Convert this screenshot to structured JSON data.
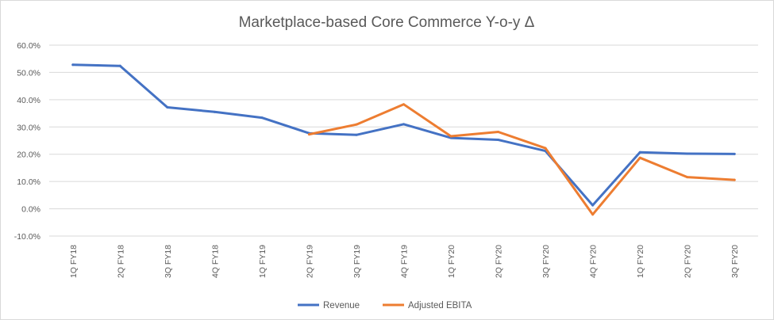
{
  "chart_data": {
    "type": "line",
    "title": "Marketplace-based Core Commerce Y-o-y Δ",
    "xlabel": "",
    "ylabel": "",
    "ylim": [
      -10,
      60
    ],
    "yticks": [
      60,
      50,
      40,
      30,
      20,
      10,
      0,
      -10
    ],
    "ytick_labels": [
      "60.0%",
      "50.0%",
      "40.0%",
      "30.0%",
      "20.0%",
      "10.0%",
      "0.0%",
      "-10.0%"
    ],
    "categories": [
      "1Q FY18",
      "2Q FY18",
      "3Q FY18",
      "4Q FY18",
      "1Q FY19",
      "2Q FY19",
      "3Q FY19",
      "4Q FY19",
      "1Q FY20",
      "2Q FY20",
      "3Q FY20",
      "4Q FY20",
      "1Q FY20",
      "2Q FY20",
      "3Q FY20"
    ],
    "grid": true,
    "legend_position": "bottom-center",
    "series": [
      {
        "name": "Revenue",
        "color": "#4472C4",
        "values": [
          52.8,
          52.4,
          37.2,
          35.5,
          33.4,
          27.7,
          27.1,
          31.0,
          26.0,
          25.3,
          21.2,
          1.3,
          20.7,
          20.2,
          20.1
        ]
      },
      {
        "name": "Adjusted EBITA",
        "color": "#ED7D31",
        "values": [
          null,
          null,
          null,
          null,
          null,
          27.3,
          30.9,
          38.3,
          26.6,
          28.2,
          22.2,
          -2.1,
          18.7,
          11.6,
          10.6
        ]
      }
    ]
  }
}
